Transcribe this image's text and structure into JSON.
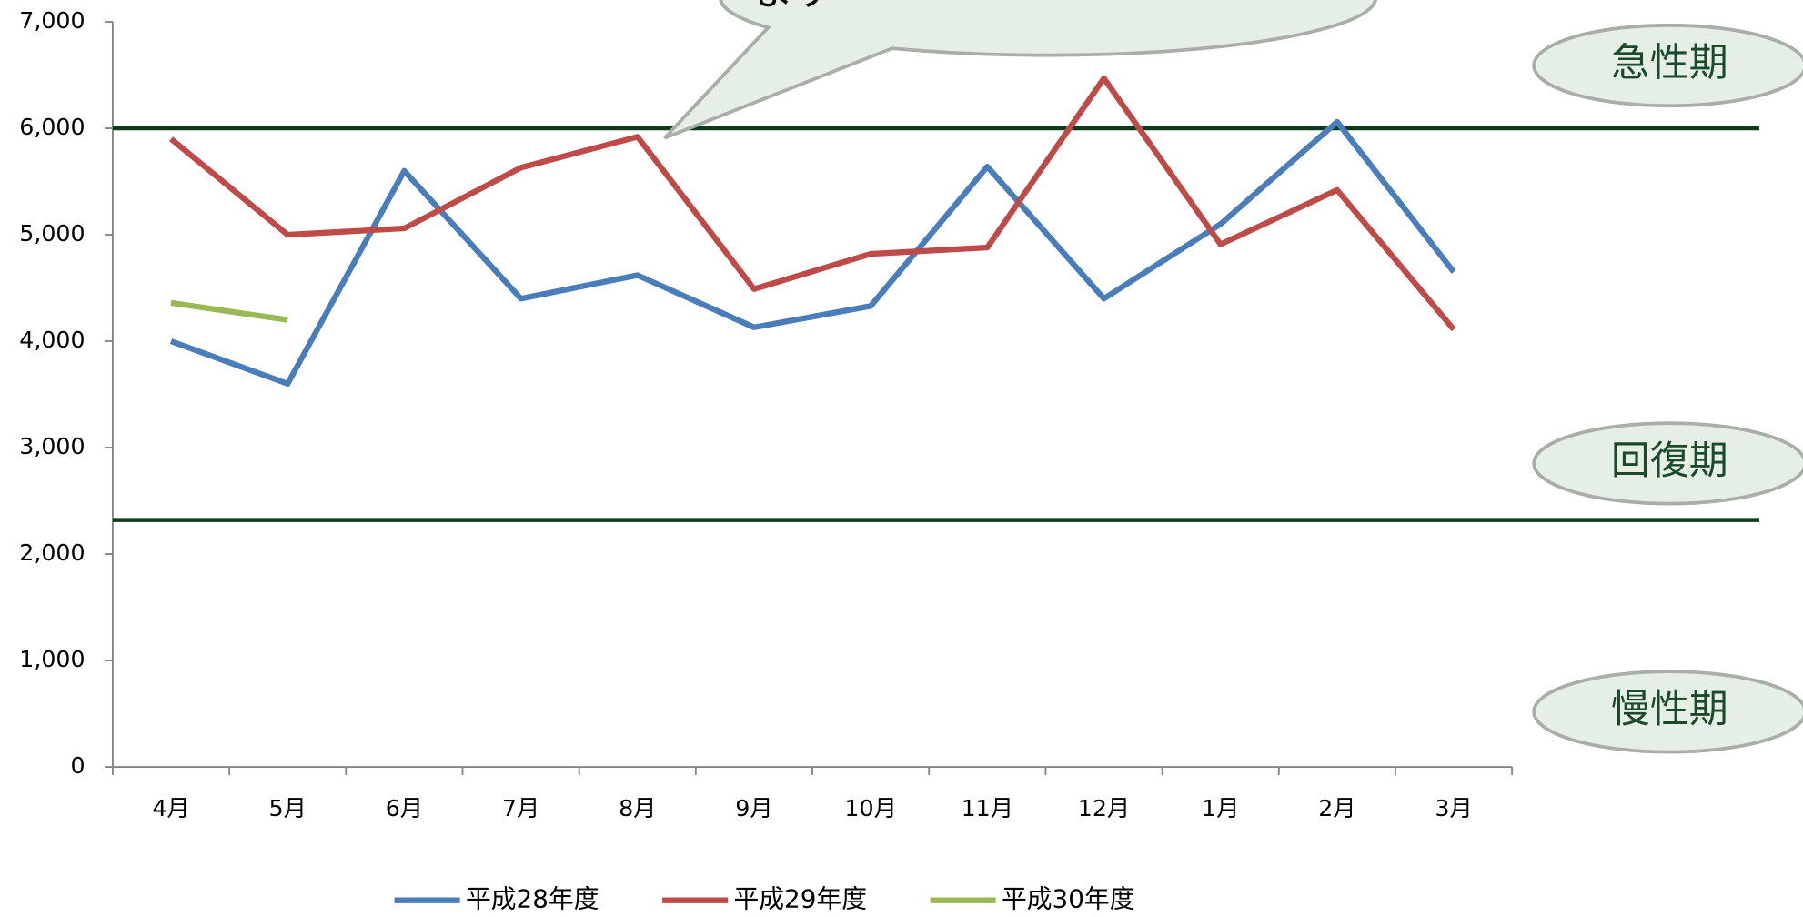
{
  "chart_data": {
    "type": "line",
    "categories": [
      "4月",
      "5月",
      "6月",
      "7月",
      "8月",
      "9月",
      "10月",
      "11月",
      "12月",
      "1月",
      "2月",
      "3月"
    ],
    "series": [
      {
        "name": "平成28年度",
        "color": "#4a7ebb",
        "values": [
          4000,
          3600,
          5600,
          4400,
          4620,
          4130,
          4330,
          5640,
          4400,
          5100,
          6060,
          4650
        ]
      },
      {
        "name": "平成29年度",
        "color": "#be4b48",
        "values": [
          5900,
          5000,
          5060,
          5630,
          5920,
          4490,
          4820,
          4880,
          6470,
          4910,
          5420,
          4110
        ]
      },
      {
        "name": "平成30年度",
        "color": "#98b954",
        "values": [
          4360,
          4200,
          null,
          null,
          null,
          null,
          null,
          null,
          null,
          null,
          null,
          null
        ]
      }
    ],
    "ylim": [
      0,
      7000
    ],
    "yticks": [
      {
        "value": 0,
        "label": "0"
      },
      {
        "value": 1000,
        "label": "1,000"
      },
      {
        "value": 2000,
        "label": "2,000"
      },
      {
        "value": 3000,
        "label": "3,000"
      },
      {
        "value": 4000,
        "label": "4,000"
      },
      {
        "value": 5000,
        "label": "5,000"
      },
      {
        "value": 6000,
        "label": "6,000"
      },
      {
        "value": 7000,
        "label": "7,000"
      }
    ],
    "reference_lines": [
      {
        "value": 6000,
        "color": "#0e3b1e"
      },
      {
        "value": 2320,
        "color": "#0e3b1e"
      }
    ],
    "zone_labels": [
      "急性期",
      "回復期",
      "慢性期"
    ],
    "callout_text": "ます",
    "legend": "bottom"
  }
}
